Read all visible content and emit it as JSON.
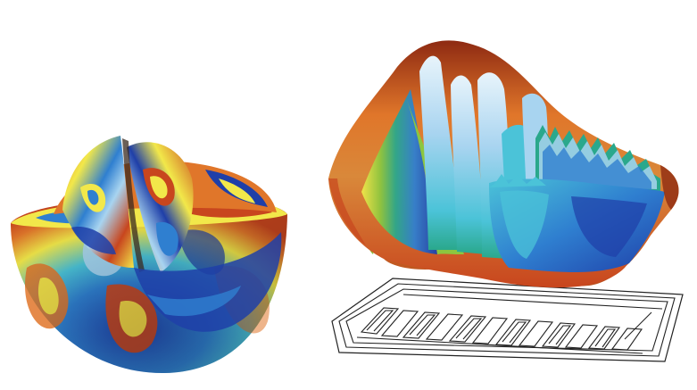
{
  "figure": {
    "panels": [
      {
        "id": "left",
        "subject": "sliced-sphere-field-visualization"
      },
      {
        "id": "right",
        "subject": "3d-surface-above-serpentine-circuit"
      }
    ],
    "colors": {
      "background": "#ffffff",
      "deep_blue": "#1f3fa8",
      "mid_blue": "#2f7fd0",
      "cyan": "#4bc3d8",
      "teal": "#2aa88c",
      "green": "#8cc63f",
      "yellow": "#f2e84a",
      "orange": "#e0762a",
      "red_orange": "#c8461e",
      "dark_red": "#8e2a12",
      "light_blue": "#a8d4f0",
      "circuit_line": "#222222"
    }
  }
}
